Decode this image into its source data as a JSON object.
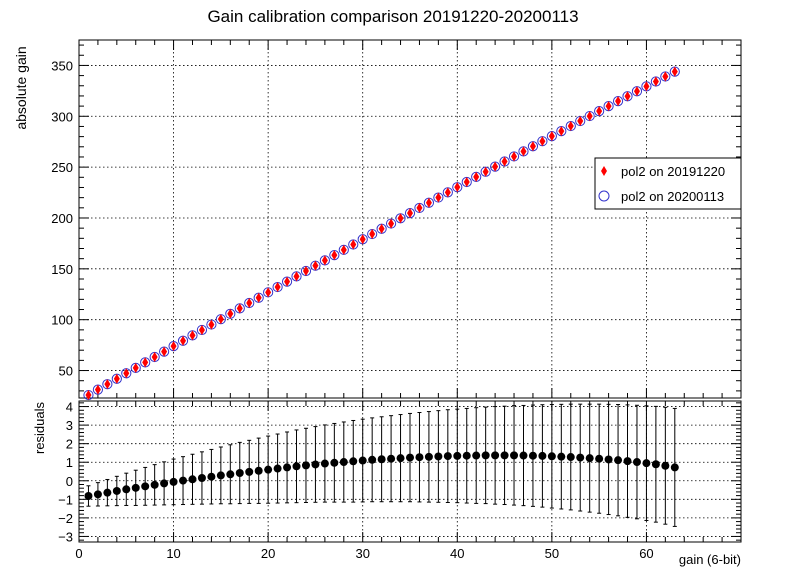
{
  "chart_data": [
    {
      "type": "scatter",
      "title": "Gain calibration comparison 20191220-20200113",
      "ylabel": "absolute gain",
      "xlim": [
        0,
        70
      ],
      "ylim": [
        23,
        375
      ],
      "x_ticks": [
        0,
        10,
        20,
        30,
        40,
        50,
        60
      ],
      "y_ticks": [
        50,
        100,
        150,
        200,
        250,
        300,
        350
      ],
      "grid": true,
      "legend_position": "right",
      "series": [
        {
          "name": "pol2 on 20191220",
          "marker": "diamond",
          "color": "#ff0000",
          "x": [
            1,
            2,
            3,
            4,
            5,
            6,
            7,
            8,
            9,
            10,
            11,
            12,
            13,
            14,
            15,
            16,
            17,
            18,
            19,
            20,
            21,
            22,
            23,
            24,
            25,
            26,
            27,
            28,
            29,
            30,
            31,
            32,
            33,
            34,
            35,
            36,
            37,
            38,
            39,
            40,
            41,
            42,
            43,
            44,
            45,
            46,
            47,
            48,
            49,
            50,
            51,
            52,
            53,
            54,
            55,
            56,
            57,
            58,
            59,
            60,
            61,
            62,
            63
          ],
          "y": [
            25.9,
            31.2,
            36.6,
            41.9,
            47.3,
            52.6,
            58.0,
            63.3,
            68.6,
            74.0,
            79.3,
            84.6,
            89.9,
            95.2,
            100.5,
            105.8,
            111.1,
            116.4,
            121.6,
            126.9,
            132.1,
            137.4,
            142.6,
            147.9,
            153.1,
            158.3,
            163.5,
            168.7,
            173.9,
            179.1,
            184.2,
            189.4,
            194.5,
            199.7,
            204.8,
            209.9,
            215.0,
            220.1,
            225.2,
            230.3,
            235.4,
            240.4,
            245.5,
            250.5,
            255.5,
            260.5,
            265.5,
            270.5,
            275.5,
            280.5,
            285.4,
            290.4,
            295.3,
            300.2,
            305.1,
            310.0,
            314.9,
            319.7,
            324.6,
            329.4,
            334.2,
            339.1,
            343.9
          ]
        },
        {
          "name": "pol2 on 20200113",
          "marker": "open-circle",
          "color": "#3333cc",
          "x": [
            1,
            2,
            3,
            4,
            5,
            6,
            7,
            8,
            9,
            10,
            11,
            12,
            13,
            14,
            15,
            16,
            17,
            18,
            19,
            20,
            21,
            22,
            23,
            24,
            25,
            26,
            27,
            28,
            29,
            30,
            31,
            32,
            33,
            34,
            35,
            36,
            37,
            38,
            39,
            40,
            41,
            42,
            43,
            44,
            45,
            46,
            47,
            48,
            49,
            50,
            51,
            52,
            53,
            54,
            55,
            56,
            57,
            58,
            59,
            60,
            61,
            62,
            63
          ],
          "y": [
            25.9,
            31.2,
            36.6,
            41.9,
            47.3,
            52.6,
            58.0,
            63.3,
            68.6,
            74.0,
            79.3,
            84.6,
            89.9,
            95.2,
            100.5,
            105.8,
            111.1,
            116.4,
            121.6,
            126.9,
            132.1,
            137.4,
            142.6,
            147.9,
            153.1,
            158.3,
            163.5,
            168.7,
            173.9,
            179.1,
            184.2,
            189.4,
            194.5,
            199.7,
            204.8,
            209.9,
            215.0,
            220.1,
            225.2,
            230.3,
            235.4,
            240.4,
            245.5,
            250.5,
            255.5,
            260.5,
            265.5,
            270.5,
            275.5,
            280.5,
            285.4,
            290.4,
            295.3,
            300.2,
            305.1,
            310.0,
            314.9,
            319.7,
            324.6,
            329.4,
            334.2,
            339.1,
            343.9
          ]
        }
      ]
    },
    {
      "type": "scatter",
      "xlabel": "gain (6-bit)",
      "ylabel": "residuals",
      "xlim": [
        0,
        70
      ],
      "ylim": [
        -3.3,
        4.3
      ],
      "x_ticks": [
        0,
        10,
        20,
        30,
        40,
        50,
        60
      ],
      "y_ticks": [
        -3,
        -2,
        -1,
        0,
        1,
        2,
        3,
        4
      ],
      "grid": true,
      "series": [
        {
          "marker": "filled-circle",
          "color": "#000000",
          "x": [
            1,
            2,
            3,
            4,
            5,
            6,
            7,
            8,
            9,
            10,
            11,
            12,
            13,
            14,
            15,
            16,
            17,
            18,
            19,
            20,
            21,
            22,
            23,
            24,
            25,
            26,
            27,
            28,
            29,
            30,
            31,
            32,
            33,
            34,
            35,
            36,
            37,
            38,
            39,
            40,
            41,
            42,
            43,
            44,
            45,
            46,
            47,
            48,
            49,
            50,
            51,
            52,
            53,
            54,
            55,
            56,
            57,
            58,
            59,
            60,
            61,
            62,
            63
          ],
          "y": [
            -0.82,
            -0.73,
            -0.64,
            -0.55,
            -0.46,
            -0.38,
            -0.3,
            -0.22,
            -0.14,
            -0.06,
            0.01,
            0.08,
            0.15,
            0.22,
            0.29,
            0.35,
            0.42,
            0.48,
            0.54,
            0.6,
            0.66,
            0.72,
            0.78,
            0.83,
            0.88,
            0.93,
            0.97,
            1.01,
            1.05,
            1.09,
            1.13,
            1.16,
            1.19,
            1.22,
            1.25,
            1.27,
            1.29,
            1.31,
            1.33,
            1.34,
            1.35,
            1.36,
            1.37,
            1.37,
            1.37,
            1.37,
            1.36,
            1.35,
            1.34,
            1.32,
            1.3,
            1.28,
            1.25,
            1.22,
            1.19,
            1.15,
            1.11,
            1.06,
            1.01,
            0.95,
            0.89,
            0.81,
            0.72
          ],
          "yerr": [
            0.55,
            0.63,
            0.71,
            0.79,
            0.87,
            0.95,
            1.02,
            1.09,
            1.16,
            1.23,
            1.29,
            1.35,
            1.41,
            1.47,
            1.53,
            1.59,
            1.65,
            1.7,
            1.76,
            1.81,
            1.86,
            1.91,
            1.96,
            2.0,
            2.04,
            2.08,
            2.12,
            2.16,
            2.2,
            2.23,
            2.26,
            2.29,
            2.32,
            2.35,
            2.38,
            2.41,
            2.44,
            2.47,
            2.5,
            2.52,
            2.55,
            2.58,
            2.6,
            2.63,
            2.65,
            2.68,
            2.7,
            2.73,
            2.76,
            2.79,
            2.82,
            2.85,
            2.88,
            2.91,
            2.94,
            2.97,
            3.0,
            3.03,
            3.06,
            3.09,
            3.12,
            3.15,
            3.18
          ]
        }
      ]
    }
  ]
}
